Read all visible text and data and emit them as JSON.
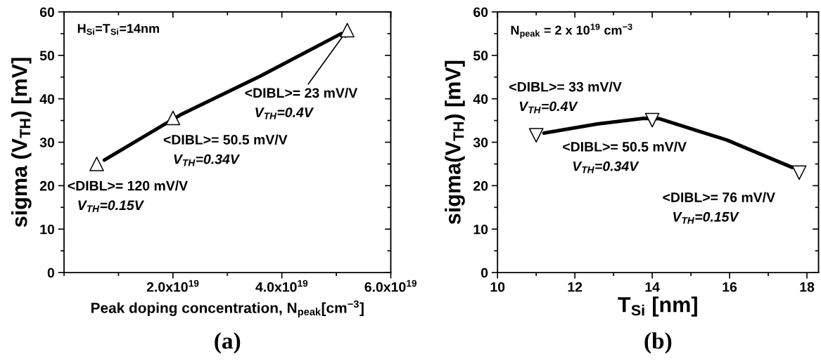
{
  "chart_data": [
    {
      "type": "scatter",
      "xlabel": "Peak doping concentration, N$_{peak}$[cm$^{−3}$]",
      "ylabel": "sigma (V$_{TH}$) [mV]",
      "xlim": [
        0,
        6e+19
      ],
      "xticks": [
        {
          "value": 2e+19,
          "label": "2.0x10$^{19}$"
        },
        {
          "value": 4e+19,
          "label": "4.0x10$^{19}$"
        },
        {
          "value": 6e+19,
          "label": "6.0x10$^{19}$"
        }
      ],
      "ylim": [
        0,
        60
      ],
      "yticks": [
        0,
        10,
        20,
        30,
        40,
        50,
        60
      ],
      "grid": false,
      "legend": false,
      "marker": "triangle",
      "series": [
        {
          "type": "line",
          "color": "#000000",
          "marker": "none",
          "x": [
            7.4e+18,
            1.88e+19,
            2.15e+19,
            3.6e+19,
            5.09e+19
          ],
          "values": [
            25.9,
            34.4,
            36.4,
            45.2,
            55.0
          ]
        },
        {
          "color": "#000000",
          "x": [
            6e+18,
            2e+19,
            5.2e+19
          ],
          "values": [
            25,
            35.6,
            55.8
          ]
        }
      ],
      "annotations": [
        "H$_{Si}$=T$_{Si}$=14nm",
        "(a)",
        {
          "text": "<DIBL>= 120 mV/V\nV$_{TH}$=0.15V",
          "x": 6e+18,
          "y": 25
        },
        {
          "text": "<DIBL>= 50.5 mV/V\nV$_{TH}$=0.34V",
          "x": 2e+19,
          "y": 35.6
        },
        {
          "text": "<DIBL>= 23 mV/V\nV$_{TH}$=0.4V",
          "x": 5.2e+19,
          "y": 55.8
        }
      ]
    },
    {
      "type": "scatter",
      "xlabel": "T$_{Si}$ [nm]",
      "ylabel": "sigma(V$_{TH}$) [mV]",
      "xlim": [
        10,
        18.3
      ],
      "xticks": [
        10,
        12,
        14,
        16,
        18
      ],
      "ylim": [
        0,
        60
      ],
      "yticks": [
        0,
        10,
        20,
        30,
        40,
        50,
        60
      ],
      "grid": false,
      "legend": false,
      "marker": "triangle",
      "series": [
        {
          "type": "line",
          "color": "#000000",
          "marker": "none",
          "x": [
            11.2,
            12.58,
            13.78,
            14.19,
            15.93,
            17.62
          ],
          "values": [
            32.1,
            34.2,
            35.5,
            35.4,
            30.5,
            24.2
          ]
        },
        {
          "color": "#000000",
          "x": [
            11,
            14,
            17.8
          ],
          "values": [
            31.6,
            35.1,
            23
          ]
        }
      ],
      "annotations": [
        "N$_{peak}$ = 2 x 10$^{19}$ cm$^{−3}$",
        "(b)",
        {
          "text": "<DIBL>= 33 mV/V\nV$_{TH}$=0.4V",
          "x": 11,
          "y": 31.6
        },
        {
          "text": "<DIBL>= 50.5 mV/V\nV$_{TH}$=0.34V",
          "x": 14,
          "y": 35.1
        },
        {
          "text": "<DIBL>= 76 mV/V\nV$_{TH}$=0.15V",
          "x": 17.8,
          "y": 23
        }
      ]
    }
  ]
}
